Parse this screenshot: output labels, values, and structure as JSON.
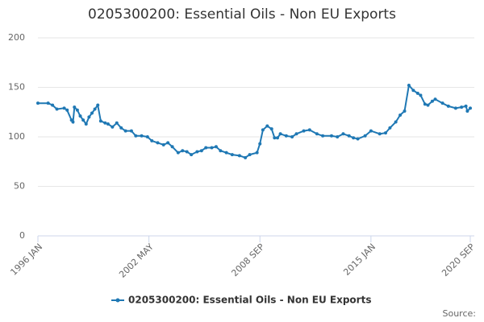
{
  "chart_data": {
    "type": "line",
    "title": "0205300200: Essential Oils - Non EU Exports",
    "source": "Source:",
    "x": [
      "1996 JAN",
      "1996 AUG",
      "1996 NOV",
      "1997 FEB",
      "1997 JUL",
      "1997 SEP",
      "1997 DEC",
      "1998 JAN",
      "1998 FEB",
      "1998 APR",
      "1998 JUN",
      "1998 AUG",
      "1998 OCT",
      "1998 DEC",
      "1999 FEB",
      "1999 APR",
      "1999 JUN",
      "1999 AUG",
      "1999 NOV",
      "2000 JAN",
      "2000 APR",
      "2000 JUL",
      "2000 OCT",
      "2001 JAN",
      "2001 MAY",
      "2001 AUG",
      "2001 DEC",
      "2002 APR",
      "2002 JUL",
      "2002 NOV",
      "2003 MAR",
      "2003 JUN",
      "2003 SEP",
      "2004 JAN",
      "2004 APR",
      "2004 JUL",
      "2004 OCT",
      "2005 FEB",
      "2005 MAY",
      "2005 AUG",
      "2005 DEC",
      "2006 MAR",
      "2006 JUN",
      "2006 OCT",
      "2007 FEB",
      "2007 JUL",
      "2007 NOV",
      "2008 FEB",
      "2008 JUL",
      "2008 SEP",
      "2008 NOV",
      "2009 FEB",
      "2009 MAY",
      "2009 JUL",
      "2009 SEP",
      "2009 NOV",
      "2010 MAR",
      "2010 JUL",
      "2010 OCT",
      "2011 MAR",
      "2011 JUL",
      "2011 DEC",
      "2012 APR",
      "2012 OCT",
      "2013 FEB",
      "2013 JUN",
      "2013 OCT",
      "2014 JAN",
      "2014 APR",
      "2014 SEP",
      "2015 JAN",
      "2015 JUL",
      "2015 NOV",
      "2016 FEB",
      "2016 JUN",
      "2016 SEP",
      "2016 DEC",
      "2017 MAR",
      "2017 JUN",
      "2017 SEP",
      "2017 NOV",
      "2018 FEB",
      "2018 APR",
      "2018 JUL",
      "2018 SEP",
      "2019 FEB",
      "2019 JUN",
      "2019 NOV",
      "2020 MAR",
      "2020 JUN",
      "2020 JUL",
      "2020 SEP"
    ],
    "series": [
      {
        "name": "0205300200: Essential Oils - Non EU Exports",
        "color": "#1f78b4",
        "values": [
          134,
          134,
          132,
          128,
          129,
          127,
          117,
          115,
          130,
          127,
          121,
          117,
          113,
          120,
          124,
          128,
          132,
          116,
          114,
          113,
          110,
          114,
          109,
          106,
          106,
          101,
          101,
          100,
          96,
          94,
          92,
          94,
          90,
          84,
          86,
          85,
          82,
          85,
          86,
          89,
          89,
          90,
          86,
          84,
          82,
          81,
          79,
          82,
          84,
          93,
          107,
          111,
          108,
          99,
          99,
          103,
          101,
          100,
          103,
          106,
          107,
          103,
          101,
          101,
          100,
          103,
          101,
          99,
          98,
          101,
          106,
          103,
          104,
          109,
          115,
          122,
          126,
          152,
          147,
          144,
          142,
          133,
          132,
          136,
          138,
          134,
          131,
          129,
          130,
          131,
          126,
          129
        ]
      }
    ],
    "xlim": [
      "1996 JAN",
      "2020 SEP"
    ],
    "xticks": [
      "1996 JAN",
      "2002 MAY",
      "2008 SEP",
      "2015 JAN",
      "2020 SEP"
    ],
    "ylim": [
      0,
      200
    ],
    "yticks": [
      0,
      50,
      100,
      150,
      200
    ],
    "grid": true
  }
}
